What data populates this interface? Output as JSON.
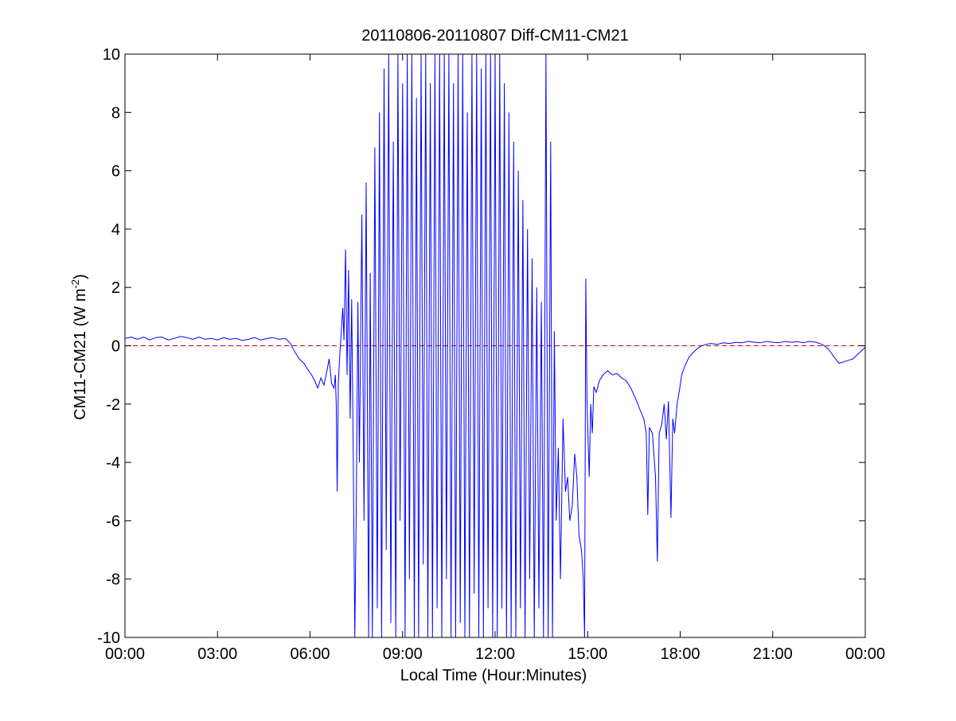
{
  "chart_data": {
    "type": "line",
    "title": "20110806-20110807 Diff-CM11-CM21",
    "xlabel": "Local Time (Hour:Minutes)",
    "ylabel_main": "CM11-CM21 (W m",
    "ylabel_sup": "-2",
    "ylabel_close": ")",
    "xlim_hours": [
      0,
      24
    ],
    "ylim": [
      -10,
      10
    ],
    "x_ticks": [
      {
        "hour": 0,
        "label": "00:00"
      },
      {
        "hour": 3,
        "label": "03:00"
      },
      {
        "hour": 6,
        "label": "06:00"
      },
      {
        "hour": 9,
        "label": "09:00"
      },
      {
        "hour": 12,
        "label": "12:00"
      },
      {
        "hour": 15,
        "label": "15:00"
      },
      {
        "hour": 18,
        "label": "18:00"
      },
      {
        "hour": 21,
        "label": "21:00"
      },
      {
        "hour": 24,
        "label": "00:00"
      }
    ],
    "y_ticks": [
      {
        "value": 10,
        "label": "10"
      },
      {
        "value": 8,
        "label": "8"
      },
      {
        "value": 6,
        "label": "6"
      },
      {
        "value": 4,
        "label": "4"
      },
      {
        "value": 2,
        "label": "2"
      },
      {
        "value": 0,
        "label": "0"
      },
      {
        "value": -2,
        "label": "-2"
      },
      {
        "value": -4,
        "label": "-4"
      },
      {
        "value": -6,
        "label": "-6"
      },
      {
        "value": -8,
        "label": "-8"
      },
      {
        "value": -10,
        "label": "-10"
      }
    ],
    "grid": false,
    "reference_line": {
      "y": 0,
      "color": "#cc0000",
      "style": "dashed"
    },
    "series": [
      {
        "color": "#0000ff",
        "points": [
          [
            0.0,
            0.25
          ],
          [
            0.2,
            0.3
          ],
          [
            0.4,
            0.22
          ],
          [
            0.6,
            0.3
          ],
          [
            0.8,
            0.2
          ],
          [
            1.0,
            0.28
          ],
          [
            1.2,
            0.3
          ],
          [
            1.4,
            0.2
          ],
          [
            1.6,
            0.25
          ],
          [
            1.8,
            0.32
          ],
          [
            2.0,
            0.28
          ],
          [
            2.2,
            0.22
          ],
          [
            2.4,
            0.3
          ],
          [
            2.6,
            0.22
          ],
          [
            2.8,
            0.25
          ],
          [
            3.0,
            0.2
          ],
          [
            3.2,
            0.28
          ],
          [
            3.4,
            0.22
          ],
          [
            3.6,
            0.25
          ],
          [
            3.8,
            0.18
          ],
          [
            4.0,
            0.22
          ],
          [
            4.2,
            0.28
          ],
          [
            4.4,
            0.2
          ],
          [
            4.6,
            0.25
          ],
          [
            4.8,
            0.28
          ],
          [
            5.0,
            0.22
          ],
          [
            5.2,
            0.25
          ],
          [
            5.35,
            0.1
          ],
          [
            5.5,
            -0.2
          ],
          [
            5.65,
            -0.45
          ],
          [
            5.8,
            -0.6
          ],
          [
            5.95,
            -0.85
          ],
          [
            6.05,
            -1.0
          ],
          [
            6.15,
            -1.2
          ],
          [
            6.25,
            -1.45
          ],
          [
            6.35,
            -1.1
          ],
          [
            6.45,
            -1.35
          ],
          [
            6.55,
            -0.85
          ],
          [
            6.62,
            -0.45
          ],
          [
            6.7,
            -1.3
          ],
          [
            6.78,
            -1.45
          ],
          [
            6.82,
            -1.0
          ],
          [
            6.85,
            -2.0
          ],
          [
            6.88,
            -5.0
          ],
          [
            6.92,
            -1.2
          ],
          [
            6.96,
            -0.4
          ],
          [
            7.02,
            0.6
          ],
          [
            7.06,
            1.3
          ],
          [
            7.1,
            0.2
          ],
          [
            7.15,
            3.3
          ],
          [
            7.2,
            -1.0
          ],
          [
            7.25,
            2.6
          ],
          [
            7.3,
            -2.5
          ],
          [
            7.35,
            1.6
          ],
          [
            7.4,
            -3.8
          ],
          [
            7.45,
            -10.0
          ],
          [
            7.5,
            -5.5
          ],
          [
            7.55,
            1.5
          ],
          [
            7.6,
            -4.0
          ],
          [
            7.68,
            4.5
          ],
          [
            7.75,
            -6.0
          ],
          [
            7.82,
            5.6
          ],
          [
            7.9,
            -10.0
          ],
          [
            7.95,
            2.5
          ],
          [
            8.02,
            -10.0
          ],
          [
            8.1,
            6.8
          ],
          [
            8.18,
            -9.0
          ],
          [
            8.25,
            8.0
          ],
          [
            8.32,
            -10.0
          ],
          [
            8.4,
            9.5
          ],
          [
            8.47,
            -7.0
          ],
          [
            8.55,
            10.0
          ],
          [
            8.62,
            -9.5
          ],
          [
            8.7,
            7.0
          ],
          [
            8.78,
            -10.0
          ],
          [
            8.85,
            10.0
          ],
          [
            8.92,
            -6.0
          ],
          [
            9.0,
            9.0
          ],
          [
            9.08,
            -10.0
          ],
          [
            9.15,
            10.0
          ],
          [
            9.22,
            -8.0
          ],
          [
            9.3,
            10.0
          ],
          [
            9.38,
            -10.0
          ],
          [
            9.45,
            8.5
          ],
          [
            9.52,
            -10.0
          ],
          [
            9.6,
            10.0
          ],
          [
            9.67,
            -7.5
          ],
          [
            9.75,
            10.0
          ],
          [
            9.82,
            -10.0
          ],
          [
            9.9,
            9.0
          ],
          [
            9.97,
            -10.0
          ],
          [
            10.05,
            10.0
          ],
          [
            10.12,
            -9.0
          ],
          [
            10.2,
            10.0
          ],
          [
            10.27,
            -10.0
          ],
          [
            10.35,
            10.0
          ],
          [
            10.42,
            -8.0
          ],
          [
            10.5,
            10.0
          ],
          [
            10.57,
            -10.0
          ],
          [
            10.65,
            9.0
          ],
          [
            10.72,
            -10.0
          ],
          [
            10.8,
            10.0
          ],
          [
            10.87,
            -9.5
          ],
          [
            10.95,
            10.0
          ],
          [
            11.02,
            -10.0
          ],
          [
            11.1,
            8.0
          ],
          [
            11.17,
            -10.0
          ],
          [
            11.25,
            10.0
          ],
          [
            11.32,
            -8.5
          ],
          [
            11.4,
            10.0
          ],
          [
            11.47,
            -10.0
          ],
          [
            11.55,
            9.5
          ],
          [
            11.62,
            -10.0
          ],
          [
            11.7,
            10.0
          ],
          [
            11.77,
            -9.0
          ],
          [
            11.85,
            10.0
          ],
          [
            11.92,
            -10.0
          ],
          [
            12.0,
            10.0
          ],
          [
            12.07,
            -10.0
          ],
          [
            12.15,
            10.0
          ],
          [
            12.22,
            -9.0
          ],
          [
            12.3,
            9.0
          ],
          [
            12.37,
            -10.0
          ],
          [
            12.45,
            8.0
          ],
          [
            12.52,
            -10.0
          ],
          [
            12.6,
            7.0
          ],
          [
            12.67,
            -10.0
          ],
          [
            12.75,
            6.0
          ],
          [
            12.82,
            -9.0
          ],
          [
            12.9,
            5.0
          ],
          [
            12.97,
            -10.0
          ],
          [
            13.05,
            4.0
          ],
          [
            13.12,
            -8.0
          ],
          [
            13.2,
            3.0
          ],
          [
            13.27,
            -10.0
          ],
          [
            13.35,
            2.0
          ],
          [
            13.42,
            -9.0
          ],
          [
            13.5,
            1.5
          ],
          [
            13.57,
            -10.0
          ],
          [
            13.65,
            10.0
          ],
          [
            13.72,
            -10.0
          ],
          [
            13.8,
            7.0
          ],
          [
            13.86,
            -10.0
          ],
          [
            13.92,
            0.5
          ],
          [
            13.98,
            -6.0
          ],
          [
            14.05,
            -3.5
          ],
          [
            14.12,
            -8.0
          ],
          [
            14.2,
            -2.5
          ],
          [
            14.28,
            -5.0
          ],
          [
            14.35,
            -4.5
          ],
          [
            14.42,
            -6.0
          ],
          [
            14.5,
            -5.5
          ],
          [
            14.58,
            -3.7
          ],
          [
            14.65,
            -4.5
          ],
          [
            14.72,
            -6.5
          ],
          [
            14.8,
            -7.0
          ],
          [
            14.86,
            -8.0
          ],
          [
            14.9,
            -10.0
          ],
          [
            14.94,
            2.3
          ],
          [
            14.98,
            -2.0
          ],
          [
            15.05,
            -4.5
          ],
          [
            15.1,
            -2.0
          ],
          [
            15.15,
            -3.0
          ],
          [
            15.2,
            -1.4
          ],
          [
            15.28,
            -1.6
          ],
          [
            15.38,
            -1.2
          ],
          [
            15.5,
            -1.0
          ],
          [
            15.65,
            -0.85
          ],
          [
            15.8,
            -1.0
          ],
          [
            15.95,
            -0.95
          ],
          [
            16.1,
            -1.1
          ],
          [
            16.25,
            -1.2
          ],
          [
            16.4,
            -1.45
          ],
          [
            16.55,
            -1.8
          ],
          [
            16.7,
            -2.2
          ],
          [
            16.82,
            -2.5
          ],
          [
            16.9,
            -3.0
          ],
          [
            16.95,
            -5.8
          ],
          [
            17.0,
            -2.8
          ],
          [
            17.1,
            -3.0
          ],
          [
            17.2,
            -4.5
          ],
          [
            17.26,
            -7.4
          ],
          [
            17.32,
            -3.0
          ],
          [
            17.4,
            -2.7
          ],
          [
            17.48,
            -2.0
          ],
          [
            17.55,
            -3.2
          ],
          [
            17.62,
            -1.9
          ],
          [
            17.7,
            -5.9
          ],
          [
            17.76,
            -2.5
          ],
          [
            17.82,
            -3.0
          ],
          [
            17.9,
            -2.0
          ],
          [
            17.98,
            -1.5
          ],
          [
            18.05,
            -1.0
          ],
          [
            18.15,
            -0.7
          ],
          [
            18.28,
            -0.4
          ],
          [
            18.4,
            -0.25
          ],
          [
            18.55,
            -0.1
          ],
          [
            18.7,
            0.0
          ],
          [
            18.85,
            0.05
          ],
          [
            19.0,
            0.08
          ],
          [
            19.2,
            0.05
          ],
          [
            19.4,
            0.1
          ],
          [
            19.6,
            0.08
          ],
          [
            19.8,
            0.12
          ],
          [
            20.0,
            0.1
          ],
          [
            20.2,
            0.15
          ],
          [
            20.4,
            0.12
          ],
          [
            20.6,
            0.1
          ],
          [
            20.8,
            0.15
          ],
          [
            21.0,
            0.12
          ],
          [
            21.2,
            0.1
          ],
          [
            21.4,
            0.15
          ],
          [
            21.6,
            0.12
          ],
          [
            21.8,
            0.14
          ],
          [
            22.0,
            0.1
          ],
          [
            22.2,
            0.15
          ],
          [
            22.4,
            0.12
          ],
          [
            22.6,
            0.05
          ],
          [
            22.8,
            -0.1
          ],
          [
            23.0,
            -0.4
          ],
          [
            23.15,
            -0.6
          ],
          [
            23.3,
            -0.55
          ],
          [
            23.45,
            -0.5
          ],
          [
            23.6,
            -0.45
          ],
          [
            23.75,
            -0.3
          ],
          [
            23.9,
            -0.15
          ],
          [
            24.0,
            -0.05
          ]
        ]
      }
    ]
  }
}
